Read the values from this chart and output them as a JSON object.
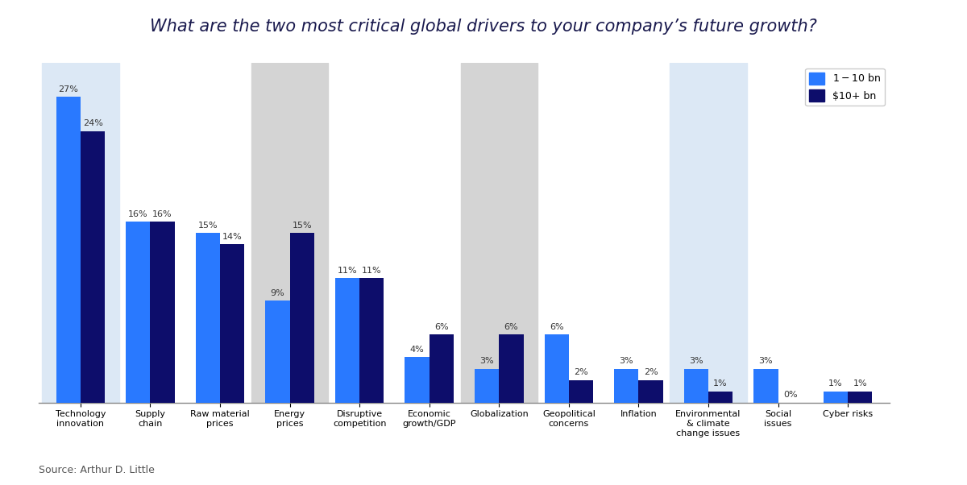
{
  "title": "What are the two most critical global drivers to your company’s future growth?",
  "categories": [
    "Technology\ninnovation",
    "Supply\nchain",
    "Raw material\nprices",
    "Energy\nprices",
    "Disruptive\ncompetition",
    "Economic\ngrowth/GDP",
    "Globalization",
    "Geopolitical\nconcerns",
    "Inflation",
    "Environmental\n& climate\nchange issues",
    "Social\nissues",
    "Cyber risks"
  ],
  "values_small": [
    27,
    16,
    15,
    9,
    11,
    4,
    3,
    6,
    3,
    3,
    3,
    1
  ],
  "values_large": [
    24,
    16,
    14,
    15,
    11,
    6,
    6,
    2,
    2,
    1,
    0,
    1
  ],
  "color_small": "#2979FF",
  "color_large": "#0D0D6B",
  "legend_small": "$1-$10 bn",
  "legend_large": "$10+ bn",
  "source": "Source: Arthur D. Little",
  "title_bg": "#aaaacc",
  "highlighted_gray": [
    3,
    6
  ],
  "highlighted_blue": [
    0,
    9
  ],
  "bg_color": "#ffffff",
  "bar_width": 0.35,
  "ylim": [
    0,
    30
  ],
  "title_fontsize": 15,
  "label_fontsize": 8,
  "tick_fontsize": 8,
  "source_fontsize": 9
}
